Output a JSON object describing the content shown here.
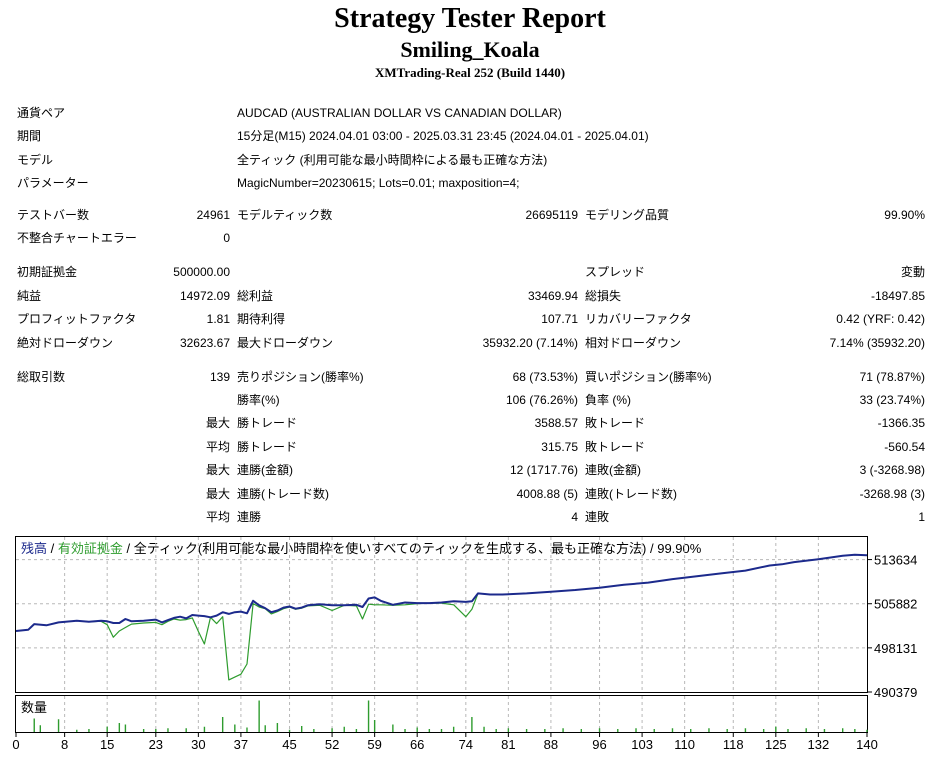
{
  "header": {
    "title": "Strategy Tester Report",
    "ea_name": "Smiling_Koala",
    "server": "XMTrading-Real 252 (Build 1440)"
  },
  "settings": [
    {
      "label": "通貨ペア",
      "value": "AUDCAD (AUSTRALIAN DOLLAR VS CANADIAN DOLLAR)"
    },
    {
      "label": "期間",
      "value": "15分足(M15) 2024.04.01 03:00 - 2025.03.31 23:45 (2024.04.01 - 2025.04.01)"
    },
    {
      "label": "モデル",
      "value": "全ティック (利用可能な最小時間枠による最も正確な方法)"
    },
    {
      "label": "パラメーター",
      "value": "MagicNumber=20230615; Lots=0.01; maxposition=4;"
    }
  ],
  "test_info": {
    "bars_label": "テストバー数",
    "bars_value": "24961",
    "ticks_label": "モデルティック数",
    "ticks_value": "26695119",
    "quality_label": "モデリング品質",
    "quality_value": "99.90%",
    "errors_label": "不整合チャートエラー",
    "errors_value": "0"
  },
  "results": {
    "deposit_label": "初期証拠金",
    "deposit_value": "500000.00",
    "spread_label": "スプレッド",
    "spread_value": "変動",
    "net_label": "純益",
    "net_value": "14972.09",
    "gross_profit_label": "総利益",
    "gross_profit_value": "33469.94",
    "gross_loss_label": "総損失",
    "gross_loss_value": "-18497.85",
    "pf_label": "プロフィットファクタ",
    "pf_value": "1.81",
    "payoff_label": "期待利得",
    "payoff_value": "107.71",
    "recovery_label": "リカバリーファクタ",
    "recovery_value": "0.42 (YRF: 0.42)",
    "abs_dd_label": "絶対ドローダウン",
    "abs_dd_value": "32623.67",
    "max_dd_label": "最大ドローダウン",
    "max_dd_value": "35932.20 (7.14%)",
    "rel_dd_label": "相対ドローダウン",
    "rel_dd_value": "7.14% (35932.20)"
  },
  "trades": {
    "total_label": "総取引数",
    "total_value": "139",
    "short_label": "売りポジション(勝率%)",
    "short_value": "68 (73.53%)",
    "long_label": "買いポジション(勝率%)",
    "long_value": "71 (78.87%)",
    "win_label": "勝率(%)",
    "win_value": "106 (76.26%)",
    "loss_label": "負率 (%)",
    "loss_value": "33 (23.74%)",
    "rows": [
      {
        "prefix": "最大",
        "l1": "勝トレード",
        "v1": "3588.57",
        "l2": "敗トレード",
        "v2": "-1366.35"
      },
      {
        "prefix": "平均",
        "l1": "勝トレード",
        "v1": "315.75",
        "l2": "敗トレード",
        "v2": "-560.54"
      },
      {
        "prefix": "最大",
        "l1": "連勝(金額)",
        "v1": "12 (1717.76)",
        "l2": "連敗(金額)",
        "v2": "3 (-3268.98)"
      },
      {
        "prefix": "最大",
        "l1": "連勝(トレード数)",
        "v1": "4008.88 (5)",
        "l2": "連敗(トレード数)",
        "v2": "-3268.98 (3)"
      },
      {
        "prefix": "平均",
        "l1": "連勝",
        "v1": "4",
        "l2": "連敗",
        "v2": "1"
      }
    ]
  },
  "chart_data": {
    "type": "line",
    "legend": {
      "balance": "残高",
      "sep1": " / ",
      "equity": "有効証拠金",
      "rest": " / 全ティック(利用可能な最小時間枠を使いすべてのティックを生成する、最も正確な方法) / 99.90%"
    },
    "colors": {
      "balance": "#1c2a8c",
      "equity": "#2e9c2e",
      "volume": "#2e9c2e",
      "grid": "#b8b8b8"
    },
    "y_ticks": [
      513634,
      505882,
      498131,
      490379
    ],
    "x_ticks": [
      0,
      8,
      15,
      23,
      30,
      37,
      45,
      52,
      59,
      66,
      74,
      81,
      88,
      96,
      103,
      110,
      118,
      125,
      132,
      140
    ],
    "ylim": [
      490379,
      517600
    ],
    "xlim": [
      0,
      140
    ],
    "volume_label": "数量",
    "series": [
      {
        "name": "残高",
        "points": [
          [
            0,
            501100
          ],
          [
            2,
            501300
          ],
          [
            3,
            502300
          ],
          [
            5,
            502100
          ],
          [
            7,
            502600
          ],
          [
            10,
            502900
          ],
          [
            12,
            502700
          ],
          [
            14,
            502900
          ],
          [
            15,
            502800
          ],
          [
            16,
            502500
          ],
          [
            17,
            502500
          ],
          [
            18,
            503200
          ],
          [
            19,
            502800
          ],
          [
            21,
            502900
          ],
          [
            23,
            503100
          ],
          [
            24,
            502600
          ],
          [
            25,
            503000
          ],
          [
            26,
            503400
          ],
          [
            27,
            503600
          ],
          [
            28,
            503300
          ],
          [
            29,
            503900
          ],
          [
            30,
            503800
          ],
          [
            31,
            503700
          ],
          [
            32,
            503500
          ],
          [
            33,
            503800
          ],
          [
            34,
            504400
          ],
          [
            35,
            504100
          ],
          [
            36,
            504400
          ],
          [
            37,
            504500
          ],
          [
            38,
            504200
          ],
          [
            39,
            506400
          ],
          [
            40,
            505600
          ],
          [
            41,
            505100
          ],
          [
            42,
            504400
          ],
          [
            43,
            504700
          ],
          [
            44,
            505200
          ],
          [
            45,
            505400
          ],
          [
            46,
            505000
          ],
          [
            47,
            505200
          ],
          [
            48,
            505600
          ],
          [
            50,
            505800
          ],
          [
            52,
            505600
          ],
          [
            54,
            505600
          ],
          [
            56,
            505700
          ],
          [
            57,
            505300
          ],
          [
            58,
            506800
          ],
          [
            59,
            507000
          ],
          [
            60,
            506400
          ],
          [
            62,
            505700
          ],
          [
            64,
            506100
          ],
          [
            66,
            506000
          ],
          [
            68,
            506000
          ],
          [
            70,
            506100
          ],
          [
            72,
            506300
          ],
          [
            74,
            506200
          ],
          [
            75,
            506300
          ],
          [
            76,
            507700
          ],
          [
            78,
            507500
          ],
          [
            80,
            507500
          ],
          [
            84,
            507700
          ],
          [
            88,
            508000
          ],
          [
            92,
            508300
          ],
          [
            96,
            508700
          ],
          [
            100,
            509200
          ],
          [
            104,
            509600
          ],
          [
            108,
            510200
          ],
          [
            112,
            510700
          ],
          [
            116,
            511200
          ],
          [
            120,
            511700
          ],
          [
            124,
            512600
          ],
          [
            126,
            512800
          ],
          [
            128,
            513200
          ],
          [
            132,
            513700
          ],
          [
            136,
            514300
          ],
          [
            138,
            514500
          ],
          [
            140,
            514400
          ]
        ]
      },
      {
        "name": "有効証拠金",
        "points": [
          [
            0,
            501100
          ],
          [
            2,
            501300
          ],
          [
            3,
            502300
          ],
          [
            5,
            502100
          ],
          [
            7,
            502600
          ],
          [
            10,
            502900
          ],
          [
            12,
            502700
          ],
          [
            14,
            502800
          ],
          [
            15,
            502200
          ],
          [
            16,
            500000
          ],
          [
            17,
            501100
          ],
          [
            18,
            501700
          ],
          [
            19,
            502300
          ],
          [
            21,
            502500
          ],
          [
            23,
            502600
          ],
          [
            24,
            502200
          ],
          [
            25,
            502800
          ],
          [
            26,
            503200
          ],
          [
            27,
            503000
          ],
          [
            28,
            503100
          ],
          [
            29,
            503400
          ],
          [
            30,
            501000
          ],
          [
            31,
            498800
          ],
          [
            32,
            503500
          ],
          [
            33,
            502400
          ],
          [
            34,
            503600
          ],
          [
            35,
            492500
          ],
          [
            36,
            493000
          ],
          [
            37,
            493500
          ],
          [
            38,
            495300
          ],
          [
            39,
            505900
          ],
          [
            40,
            505300
          ],
          [
            41,
            505000
          ],
          [
            42,
            504100
          ],
          [
            43,
            504500
          ],
          [
            44,
            505000
          ],
          [
            45,
            505300
          ],
          [
            46,
            504900
          ],
          [
            47,
            505100
          ],
          [
            48,
            505500
          ],
          [
            50,
            505600
          ],
          [
            52,
            504700
          ],
          [
            54,
            505600
          ],
          [
            56,
            505500
          ],
          [
            57,
            503200
          ],
          [
            58,
            505800
          ],
          [
            59,
            505700
          ],
          [
            60,
            505700
          ],
          [
            62,
            505600
          ],
          [
            64,
            505700
          ],
          [
            66,
            505900
          ],
          [
            68,
            506000
          ],
          [
            70,
            506000
          ],
          [
            72,
            505700
          ],
          [
            74,
            503600
          ],
          [
            75,
            504900
          ],
          [
            76,
            507700
          ],
          [
            78,
            507500
          ],
          [
            80,
            507500
          ],
          [
            84,
            507700
          ],
          [
            88,
            508000
          ],
          [
            92,
            508300
          ],
          [
            96,
            508700
          ],
          [
            100,
            509200
          ],
          [
            104,
            509600
          ],
          [
            108,
            510200
          ],
          [
            112,
            510700
          ],
          [
            116,
            511200
          ],
          [
            120,
            511700
          ],
          [
            124,
            512600
          ],
          [
            126,
            512800
          ],
          [
            128,
            513200
          ],
          [
            132,
            513700
          ],
          [
            136,
            514300
          ],
          [
            138,
            514500
          ],
          [
            140,
            514400
          ]
        ]
      }
    ],
    "volume": [
      [
        3,
        0.9
      ],
      [
        4,
        0.45
      ],
      [
        7,
        0.85
      ],
      [
        10,
        0.15
      ],
      [
        12,
        0.2
      ],
      [
        15,
        0.35
      ],
      [
        17,
        0.6
      ],
      [
        18,
        0.5
      ],
      [
        21,
        0.2
      ],
      [
        23,
        0.2
      ],
      [
        25,
        0.25
      ],
      [
        28,
        0.25
      ],
      [
        31,
        0.35
      ],
      [
        34,
        1
      ],
      [
        36,
        0.5
      ],
      [
        38,
        0.3
      ],
      [
        40,
        2.1
      ],
      [
        41,
        0.45
      ],
      [
        43,
        0.6
      ],
      [
        45,
        0.15
      ],
      [
        47,
        0.4
      ],
      [
        49,
        0.2
      ],
      [
        52,
        0.25
      ],
      [
        54,
        0.35
      ],
      [
        56,
        0.2
      ],
      [
        58,
        2.1
      ],
      [
        59,
        0.8
      ],
      [
        62,
        0.5
      ],
      [
        64,
        0.2
      ],
      [
        66,
        0.3
      ],
      [
        68,
        0.2
      ],
      [
        70,
        0.2
      ],
      [
        72,
        0.35
      ],
      [
        75,
        1
      ],
      [
        77,
        0.35
      ],
      [
        79,
        0.2
      ],
      [
        81,
        0.25
      ],
      [
        84,
        0.2
      ],
      [
        87,
        0.2
      ],
      [
        90,
        0.25
      ],
      [
        93,
        0.2
      ],
      [
        96,
        0.25
      ],
      [
        99,
        0.2
      ],
      [
        102,
        0.25
      ],
      [
        105,
        0.2
      ],
      [
        108,
        0.25
      ],
      [
        111,
        0.2
      ],
      [
        114,
        0.25
      ],
      [
        117,
        0.2
      ],
      [
        120,
        0.25
      ],
      [
        123,
        0.2
      ],
      [
        125,
        0.35
      ],
      [
        127,
        0.2
      ],
      [
        130,
        0.25
      ],
      [
        133,
        0.2
      ],
      [
        136,
        0.25
      ],
      [
        138,
        0.2
      ],
      [
        140,
        0.15
      ]
    ]
  }
}
